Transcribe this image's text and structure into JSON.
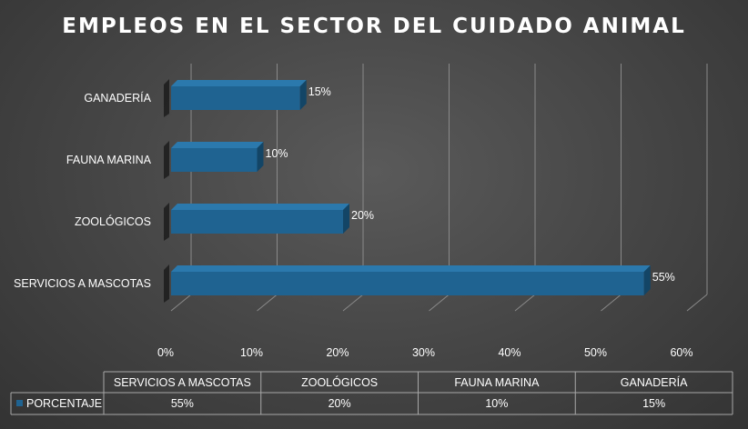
{
  "chart_data": {
    "type": "bar",
    "orientation": "horizontal",
    "style": "3d-clustered-bar",
    "title": "EMPLEOS EN EL SECTOR DEL CUIDADO ANIMAL",
    "categories": [
      "SERVICIOS A MASCOTAS",
      "ZOOLÓGICOS",
      "FAUNA MARINA",
      "GANADERÍA"
    ],
    "series": [
      {
        "name": "PORCENTAJE",
        "values": [
          55,
          20,
          10,
          15
        ],
        "labels": [
          "55%",
          "20%",
          "10%",
          "15%"
        ]
      }
    ],
    "xlim": [
      0,
      60
    ],
    "x_ticks": [
      0,
      10,
      20,
      30,
      40,
      50,
      60
    ],
    "x_tick_labels": [
      "0%",
      "10%",
      "20%",
      "30%",
      "40%",
      "50%",
      "60%"
    ],
    "grid": true,
    "data_table": true,
    "legend_key_in_table": true
  },
  "colors": {
    "bar_front": "#1f6391",
    "bar_top": "#2b79ad",
    "bar_side": "#134566",
    "shadow": "#1c1c1c",
    "grid": "#8a8a8a",
    "text": "#ffffff",
    "table_border": "#a8a8a8"
  }
}
